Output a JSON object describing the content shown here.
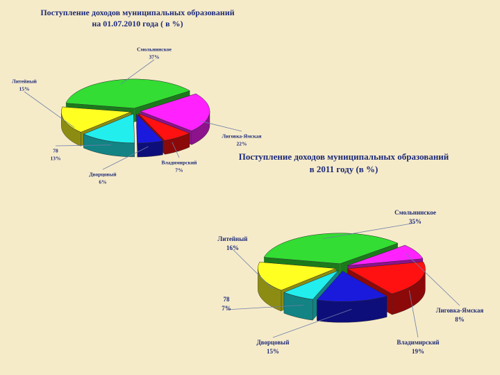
{
  "chart_data": [
    {
      "type": "pie",
      "title": [
        "Поступление доходов муниципальных образований",
        "на 01.07.2010 года ( в %)"
      ],
      "categories": [
        "Смольнинское",
        "Лиговка-Ямская",
        "Владимирский",
        "Дворцовый",
        "78",
        "Литейный"
      ],
      "values": [
        37,
        22,
        7,
        6,
        13,
        15
      ],
      "value_labels": [
        "37%",
        "22%",
        "7%",
        "6%",
        "13%",
        "15%"
      ],
      "colors": [
        "#33dd33",
        "#ff22ff",
        "#ff1111",
        "#1a1add",
        "#22eeee",
        "#ffff22"
      ]
    },
    {
      "type": "pie",
      "title": [
        "Поступление доходов муниципальных образований",
        "в 2011 году (в %)"
      ],
      "categories": [
        "Смольнинское",
        "Лиговка-Ямская",
        "Владимирский",
        "Дворцовый",
        "78",
        "Литейный"
      ],
      "values": [
        35,
        8,
        19,
        15,
        7,
        16
      ],
      "value_labels": [
        "35%",
        "8%",
        "19%",
        "15%",
        "7%",
        "16%"
      ],
      "colors": [
        "#33dd33",
        "#ff22ff",
        "#ff1111",
        "#1a1add",
        "#22eeee",
        "#ffff22"
      ]
    }
  ]
}
